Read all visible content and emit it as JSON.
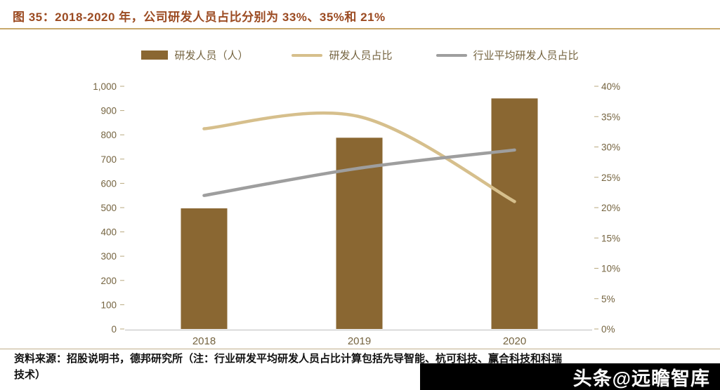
{
  "title": "图 35：2018-2020 年，公司研发人员占比分别为 33%、35%和 21%",
  "legend": {
    "items": [
      {
        "label": "研发人员（人）",
        "type": "bar"
      },
      {
        "label": "研发人员占比",
        "type": "line"
      },
      {
        "label": "行业平均研发人员占比",
        "type": "line"
      }
    ]
  },
  "footer": {
    "line1": "资料来源：招股说明书，德邦研究所（注：行业研发平均研发人员占比计算包括先导智能、杭可科技、赢合科技和科瑞",
    "line2": "技术）"
  },
  "watermark": "头条@远瞻智库",
  "colors": {
    "title": "#9b4a21",
    "divider": "#c8a96c",
    "axis_text": "#756440",
    "axis_line": "#cfcfcf"
  },
  "chart_data": {
    "type": "bar",
    "subtype": "bar+line combo, dual axis",
    "categories": [
      "2018",
      "2019",
      "2020"
    ],
    "series": [
      {
        "name": "研发人员（人）",
        "type": "bar",
        "axis": "left",
        "values": [
          497,
          788,
          950
        ],
        "color": "#8a6732"
      },
      {
        "name": "研发人员占比",
        "type": "line",
        "axis": "right",
        "values": [
          33,
          35,
          21
        ],
        "color": "#d6bf8c"
      },
      {
        "name": "行业平均研发人员占比",
        "type": "line",
        "axis": "right",
        "values": [
          22,
          26.5,
          29.5
        ],
        "color": "#9e9e9e"
      }
    ],
    "left_axis": {
      "min": 0,
      "max": 1000,
      "step": 100,
      "tick_labels": [
        "0",
        "100",
        "200",
        "300",
        "400",
        "500",
        "600",
        "700",
        "800",
        "900",
        "1,000"
      ]
    },
    "right_axis": {
      "min": 0,
      "max": 40,
      "step": 5,
      "tick_labels": [
        "0%",
        "5%",
        "10%",
        "15%",
        "20%",
        "25%",
        "30%",
        "35%",
        "40%"
      ]
    },
    "grid": false,
    "legend_position": "top"
  }
}
